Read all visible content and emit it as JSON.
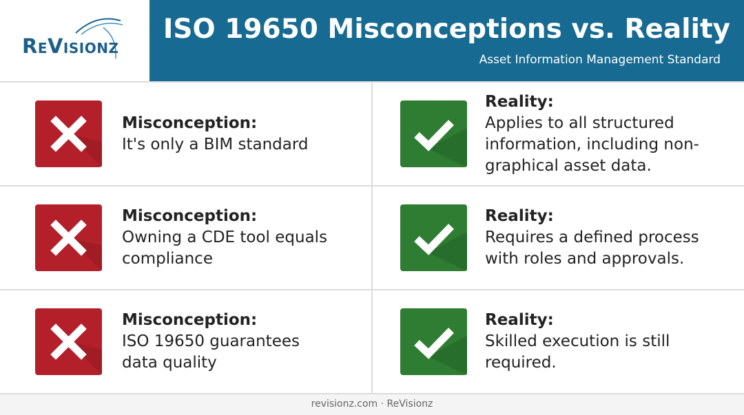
{
  "header": {
    "logo": "ReVisionz",
    "title": "ISO 19650 Misconceptions vs. Reality",
    "subtitle": "Asset Information Management Standard"
  },
  "rows": [
    {
      "misconception": {
        "label": "Misconception:",
        "text": "It's only a BIM standard"
      },
      "reality": {
        "label": "Reality:",
        "text": "Applies to all structured information, including non-graphical asset data."
      }
    },
    {
      "misconception": {
        "label": "Misconception:",
        "text": "Owning a CDE tool equals compliance"
      },
      "reality": {
        "label": "Reality:",
        "text": "Requires a defined process with roles and approvals."
      }
    },
    {
      "misconception": {
        "label": "Misconception:",
        "text": "ISO 19650 guarantees data quality"
      },
      "reality": {
        "label": "Reality:",
        "text": "Skilled execution is still required."
      }
    }
  ],
  "footer": "revisionz.com · ReVisionz"
}
